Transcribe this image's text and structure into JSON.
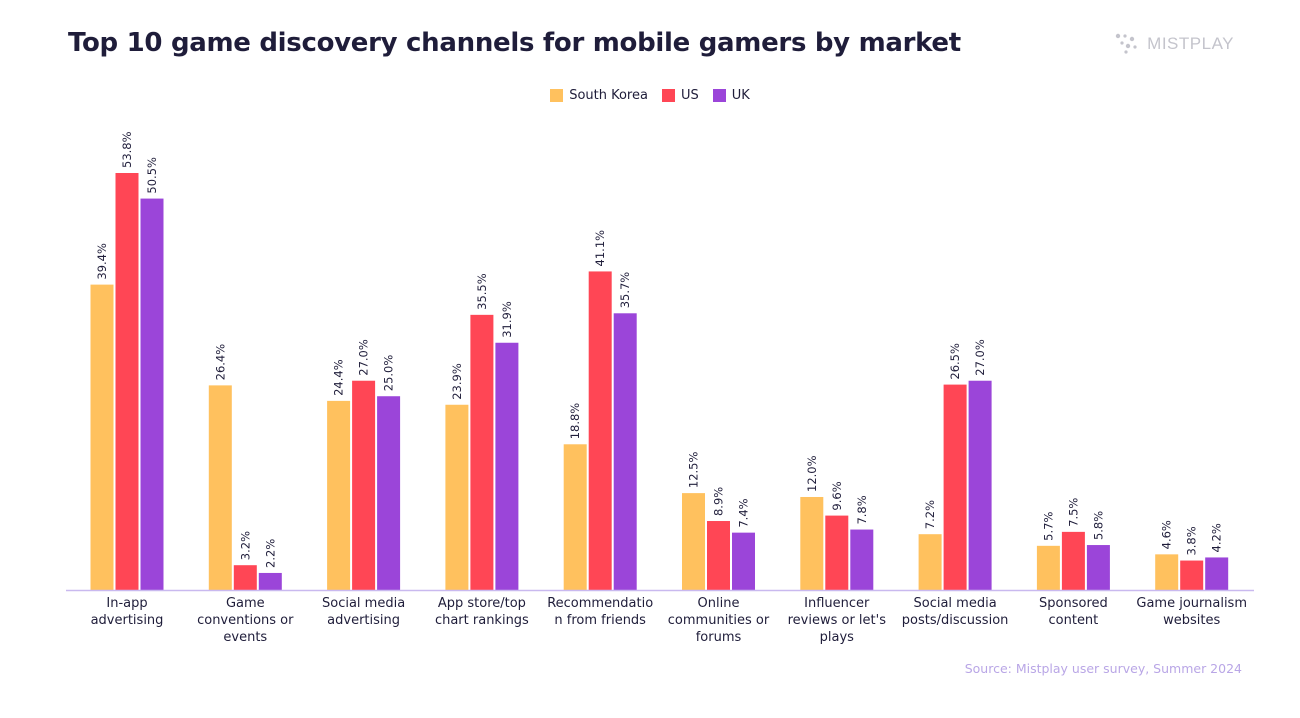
{
  "header": {
    "title": "Top 10 game discovery channels for mobile gamers by market",
    "brand": "MISTPLAY",
    "brand_icon": "dots-logo-icon"
  },
  "footer": {
    "source": "Source: Mistplay user survey, Summer 2024"
  },
  "colors": {
    "South Korea": "#ffc15e",
    "US": "#ff4655",
    "UK": "#9b45d9",
    "axis": "#c9b9ef"
  },
  "chart_data": {
    "type": "bar",
    "title": "Top 10 game discovery channels for mobile gamers by market",
    "xlabel": "",
    "ylabel": "",
    "ylim": [
      0,
      53.8
    ],
    "grid": false,
    "legend": "top-center",
    "value_suffix": "%",
    "categories": [
      [
        "In-app",
        "advertising"
      ],
      [
        "Game",
        "conventions or",
        "events"
      ],
      [
        "Social media",
        "advertising"
      ],
      [
        "App store/top",
        "chart rankings"
      ],
      [
        "Recommendatio",
        "n from friends"
      ],
      [
        "Online",
        "communities or",
        "forums"
      ],
      [
        "Influencer",
        "reviews or let's",
        "plays"
      ],
      [
        "Social media",
        "posts/discussion"
      ],
      [
        "Sponsored",
        "content"
      ],
      [
        "Game journalism",
        "websites"
      ]
    ],
    "series": [
      {
        "name": "South Korea",
        "values": [
          39.4,
          26.4,
          24.4,
          23.9,
          18.8,
          12.5,
          12.0,
          7.2,
          5.7,
          4.6
        ]
      },
      {
        "name": "US",
        "values": [
          53.8,
          3.2,
          27.0,
          35.5,
          41.1,
          8.9,
          9.6,
          26.5,
          7.5,
          3.8
        ]
      },
      {
        "name": "UK",
        "values": [
          50.5,
          2.2,
          25.0,
          31.9,
          35.7,
          7.4,
          7.8,
          27.0,
          5.8,
          4.2
        ]
      }
    ]
  }
}
